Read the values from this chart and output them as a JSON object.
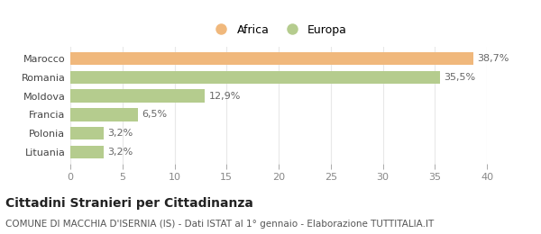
{
  "categories": [
    "Lituania",
    "Polonia",
    "Francia",
    "Moldova",
    "Romania",
    "Marocco"
  ],
  "values": [
    3.2,
    3.2,
    6.5,
    12.9,
    35.5,
    38.7
  ],
  "labels": [
    "3,2%",
    "3,2%",
    "6,5%",
    "12,9%",
    "35,5%",
    "38,7%"
  ],
  "colors": [
    "#b5cc8e",
    "#b5cc8e",
    "#b5cc8e",
    "#b5cc8e",
    "#b5cc8e",
    "#f0b87c"
  ],
  "legend_items": [
    {
      "label": "Africa",
      "color": "#f0b87c"
    },
    {
      "label": "Europa",
      "color": "#b5cc8e"
    }
  ],
  "xlim": [
    0,
    40
  ],
  "xticks": [
    0,
    5,
    10,
    15,
    20,
    25,
    30,
    35,
    40
  ],
  "title": "Cittadini Stranieri per Cittadinanza",
  "subtitle": "COMUNE DI MACCHIA D'ISERNIA (IS) - Dati ISTAT al 1° gennaio - Elaborazione TUTTITALIA.IT",
  "title_fontsize": 10,
  "subtitle_fontsize": 7.5,
  "label_fontsize": 8,
  "tick_fontsize": 8,
  "legend_fontsize": 9,
  "bar_height": 0.7,
  "bg_color": "#ffffff",
  "grid_color": "#e8e8e8"
}
